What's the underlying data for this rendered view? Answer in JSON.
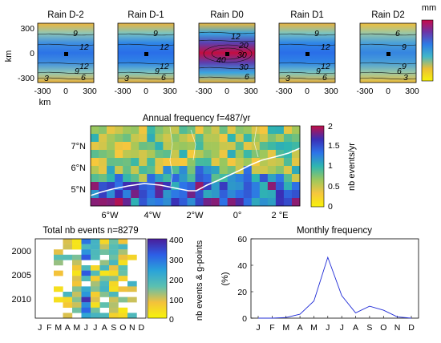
{
  "colors": {
    "rain_scale": [
      "#f6f20c",
      "#ecbf34",
      "#41b7c9",
      "#2d7ce6",
      "#6a36a8",
      "#c80a4b"
    ],
    "freq_scale": [
      "#f8f20a",
      "#f6c63e",
      "#9bc75d",
      "#2fb6b0",
      "#2d74e8",
      "#3a2fb6",
      "#c20f45"
    ],
    "count_scale": [
      "#f7f50a",
      "#f3c13b",
      "#5bc0b0",
      "#2aa3d9",
      "#2d5ee6",
      "#4a1d9a"
    ],
    "line": "#1f2bd6",
    "coast": "#ffffff"
  },
  "rain_panels": {
    "unit": "mm",
    "ylabel": "km",
    "xlabel": "km",
    "x_ticks": [
      "-300",
      "0",
      "300"
    ],
    "y_ticks": [
      "300",
      "0",
      "-300"
    ],
    "colorbar_ticks": [],
    "panels": [
      {
        "title": "Rain D-2",
        "labels": [
          "9",
          "12",
          "12",
          "9",
          "6",
          "3"
        ]
      },
      {
        "title": "Rain D-1",
        "labels": [
          "9",
          "12",
          "12",
          "9",
          "6",
          "3"
        ]
      },
      {
        "title": "Rain D0",
        "labels": [
          "12",
          "20",
          "30",
          "40",
          "30",
          "6"
        ]
      },
      {
        "title": "Rain D1",
        "labels": [
          "9",
          "12",
          "12",
          "9",
          "6",
          "3"
        ]
      },
      {
        "title": "Rain D2",
        "labels": [
          "6",
          "9",
          "9",
          "6",
          "3"
        ]
      }
    ]
  },
  "chart_data": [
    {
      "type": "heatmap",
      "title": "Annual frequency f=487/yr",
      "x_ticks": [
        "6°W",
        "4°W",
        "2°W",
        "0°",
        "2 °E"
      ],
      "y_ticks": [
        "7°N",
        "6°N",
        "5°N"
      ],
      "colorbar_label": "nb events/yr",
      "colorbar_range": [
        0,
        2
      ],
      "colorbar_ticks": [
        "2",
        "1.5",
        "1",
        "0.5",
        "0"
      ]
    },
    {
      "type": "heatmap",
      "title": "Total nb events n=8279",
      "x": [
        "J",
        "F",
        "M",
        "A",
        "M",
        "J",
        "J",
        "A",
        "S",
        "O",
        "N",
        "D"
      ],
      "y_ticks": [
        "2000",
        "2005",
        "2010"
      ],
      "colorbar_label": "nb events & g-points",
      "colorbar_range": [
        0,
        400
      ],
      "colorbar_ticks": [
        "400",
        "300",
        "200",
        "100",
        "0"
      ]
    },
    {
      "type": "line",
      "title": "Monthly frequency",
      "x": [
        "J",
        "F",
        "M",
        "A",
        "M",
        "J",
        "J",
        "A",
        "S",
        "O",
        "N",
        "D"
      ],
      "y": [
        0,
        0,
        0.5,
        3,
        13,
        46,
        17,
        4,
        9,
        6,
        1,
        0
      ],
      "ylabel": "(%)",
      "ylim": [
        0,
        60
      ],
      "y_ticks": [
        "60",
        "40",
        "20",
        "0"
      ]
    }
  ]
}
